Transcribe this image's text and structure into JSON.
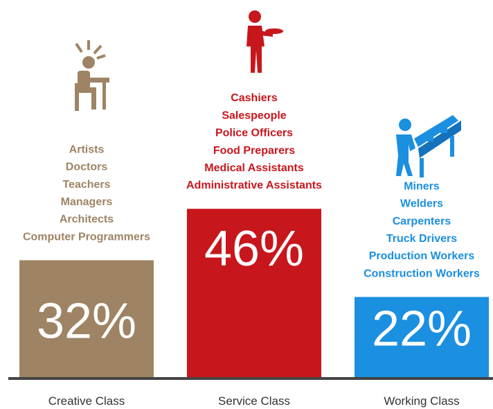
{
  "chart_data": {
    "type": "bar",
    "categories": [
      "Creative Class",
      "Service Class",
      "Working Class"
    ],
    "values": [
      32,
      46,
      22
    ],
    "value_labels": [
      "32%",
      "46%",
      "22%"
    ],
    "colors": [
      "#9e8464",
      "#c8161d",
      "#1b8fe0"
    ],
    "occupations": [
      [
        "Artists",
        "Doctors",
        "Teachers",
        "Managers",
        "Architects",
        "Computer Programmers"
      ],
      [
        "Cashiers",
        "Salespeople",
        "Police Officers",
        "Food Preparers",
        "Medical Assistants",
        "Administrative Assistants"
      ],
      [
        "Miners",
        "Welders",
        "Carpenters",
        "Truck Drivers",
        "Production Workers",
        "Construction Workers"
      ]
    ]
  }
}
